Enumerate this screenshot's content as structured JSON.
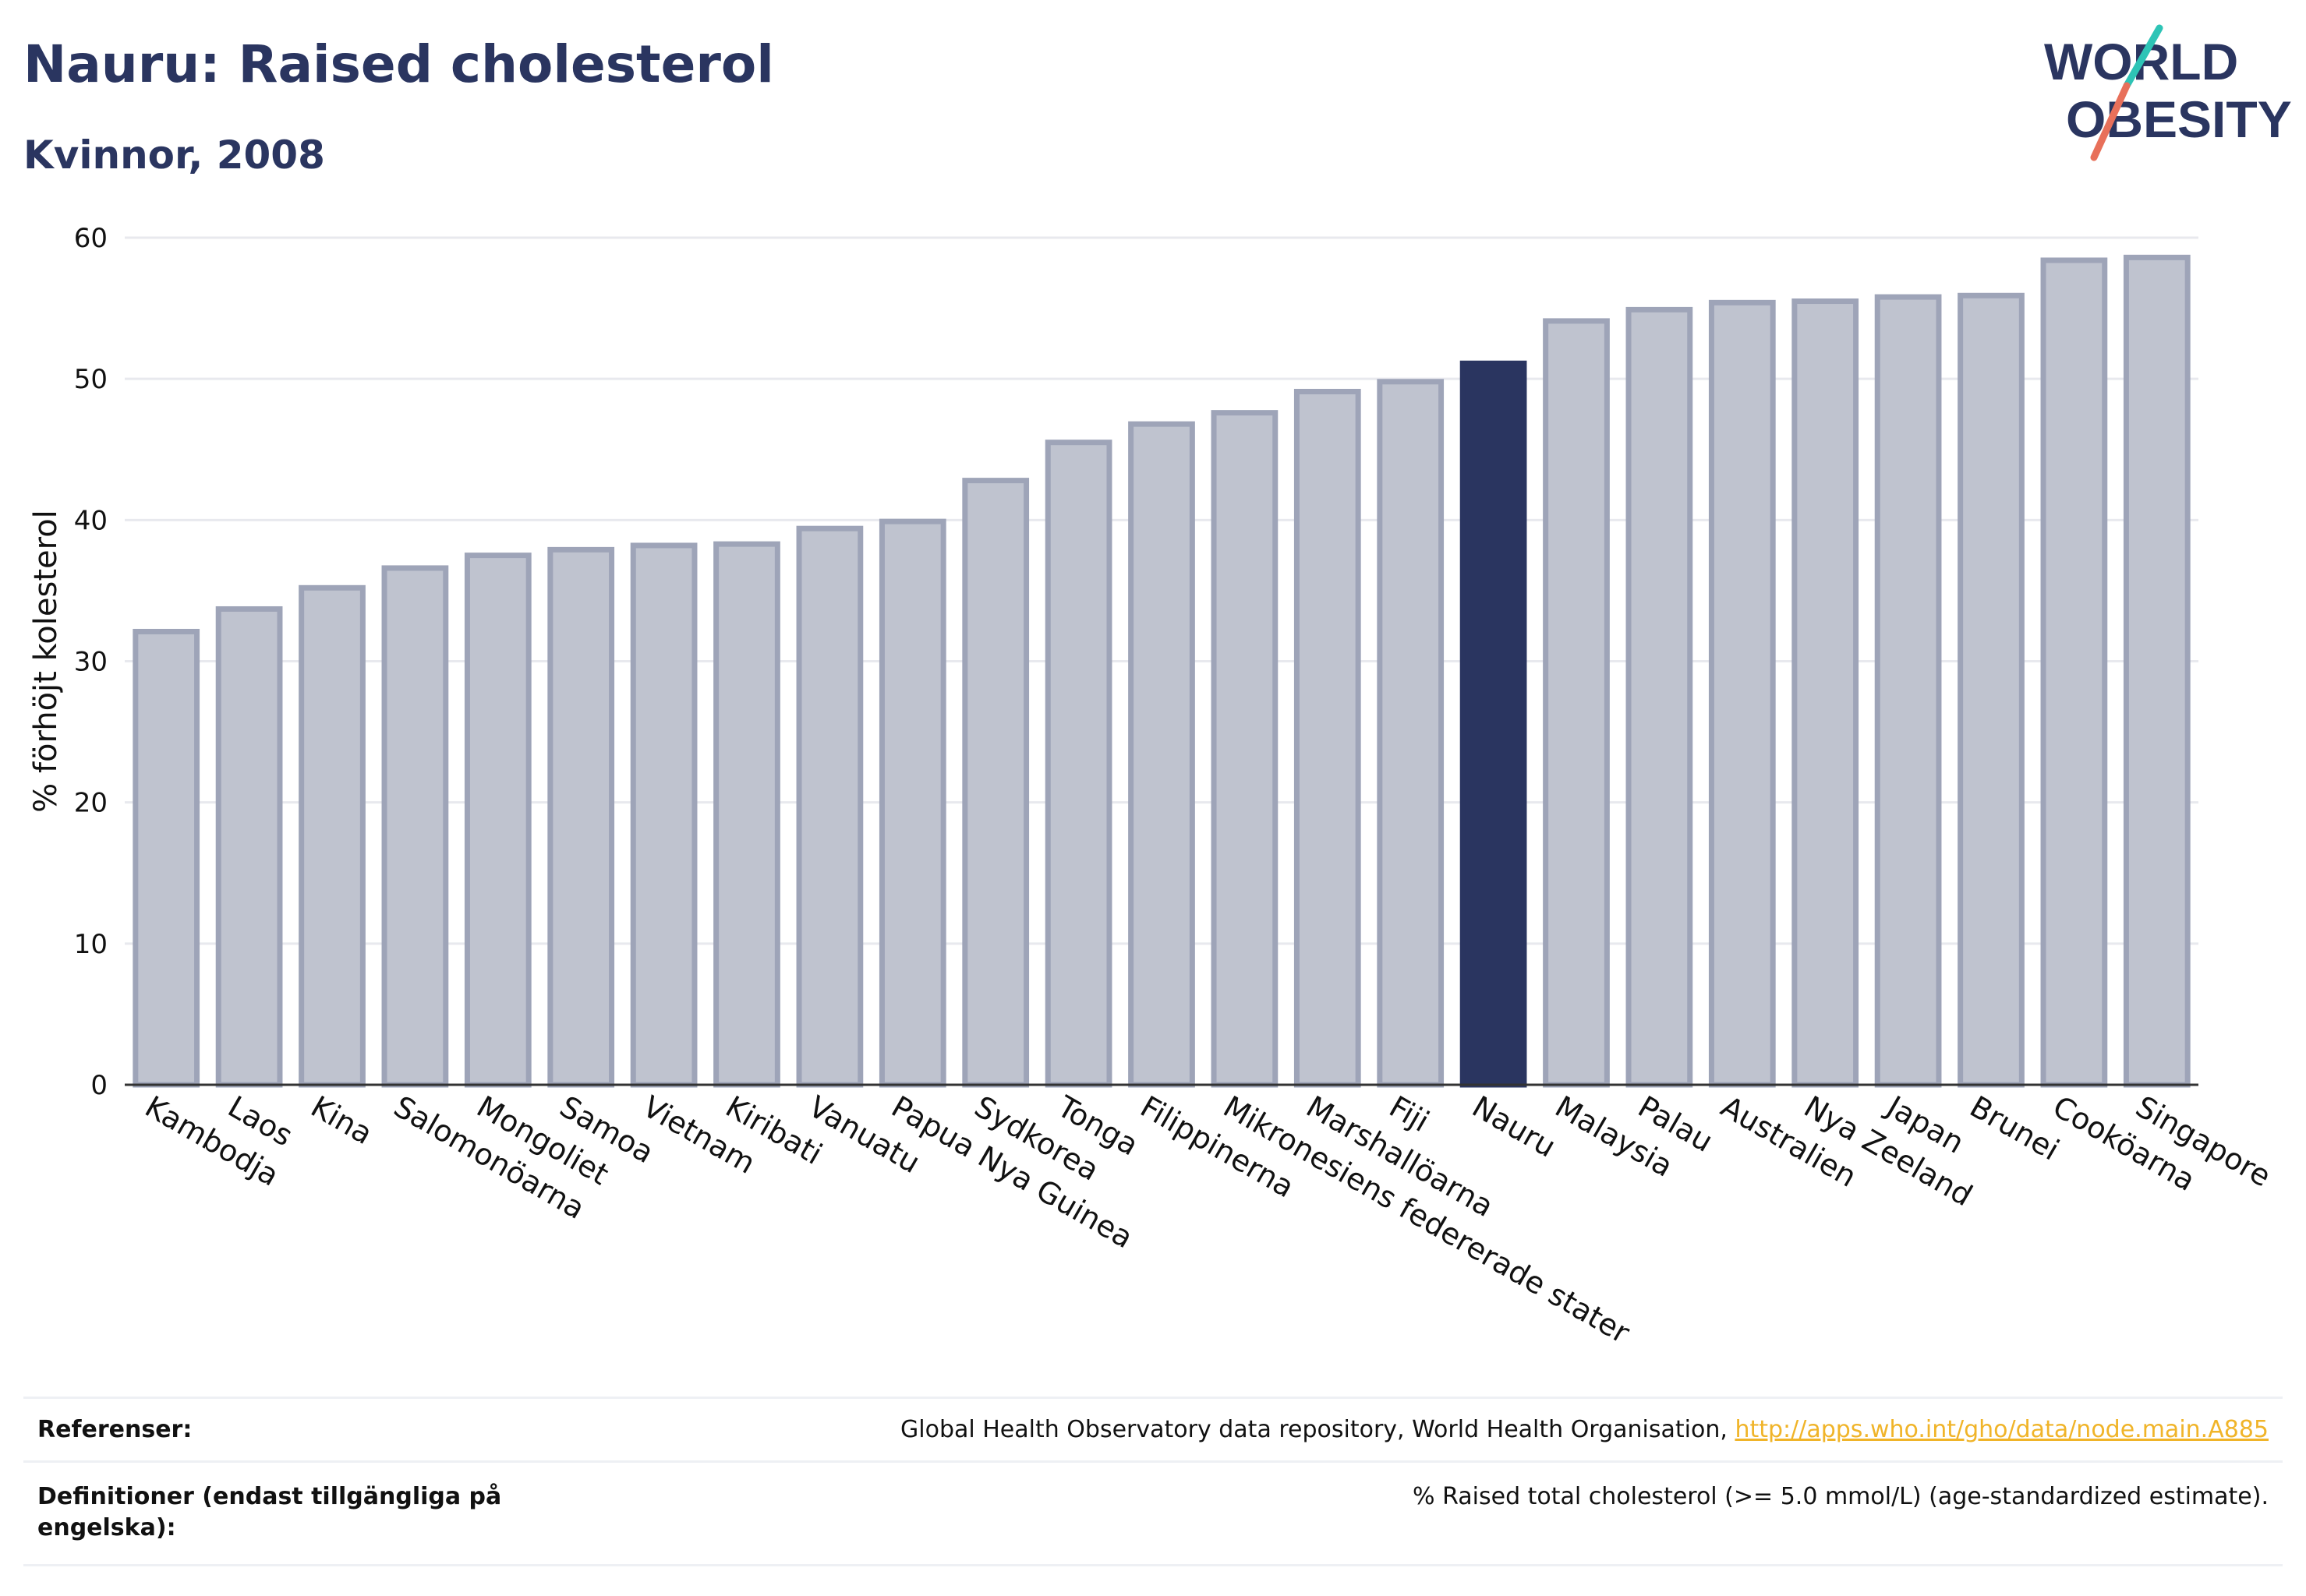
{
  "header": {
    "title": "Nauru: Raised cholesterol",
    "subtitle": "Kvinnor, 2008",
    "logo_line1": "WORLD",
    "logo_line2": "OBESITY"
  },
  "colors": {
    "bar": "#bfc3cf",
    "bar_border": "#9ea4b8",
    "highlight": "#2a3560",
    "grid": "#e8e9ee",
    "logo_teal": "#2ec4b6",
    "logo_coral": "#e8705a"
  },
  "chart_data": {
    "type": "bar",
    "title": "",
    "ylabel": "% förhöjt kolesterol",
    "ylim": [
      0,
      60
    ],
    "yticks": [
      0,
      10,
      20,
      30,
      40,
      50,
      60
    ],
    "grid": true,
    "highlight": "Nauru",
    "categories": [
      "Kambodja",
      "Laos",
      "Kina",
      "Salomonöarna",
      "Mongoliet",
      "Samoa",
      "Vietnam",
      "Kiribati",
      "Vanuatu",
      "Papua Nya Guinea",
      "Sydkorea",
      "Tonga",
      "Filippinerna",
      "Mikronesiens federerade stater",
      "Marshallöarna",
      "Fiji",
      "Nauru",
      "Malaysia",
      "Palau",
      "Australien",
      "Nya Zeeland",
      "Japan",
      "Brunei",
      "Cooköarna",
      "Singapore"
    ],
    "values": [
      32.1,
      33.7,
      35.2,
      36.6,
      37.5,
      37.9,
      38.2,
      38.3,
      39.4,
      39.9,
      42.8,
      45.5,
      46.8,
      47.6,
      49.1,
      49.8,
      51.1,
      54.1,
      54.9,
      55.4,
      55.5,
      55.8,
      55.9,
      58.4,
      58.6
    ]
  },
  "footer": {
    "references_label": "Referenser:",
    "references_text": "Global Health Observatory data repository, World Health Organisation, ",
    "references_link": "http://apps.who.int/gho/data/node.main.A885",
    "definitions_label_line1": "Definitioner (endast tillgängliga på",
    "definitions_label_line2": "engelska):",
    "definitions_text": "% Raised total cholesterol (>= 5.0 mmol/L) (age-standardized estimate)."
  }
}
